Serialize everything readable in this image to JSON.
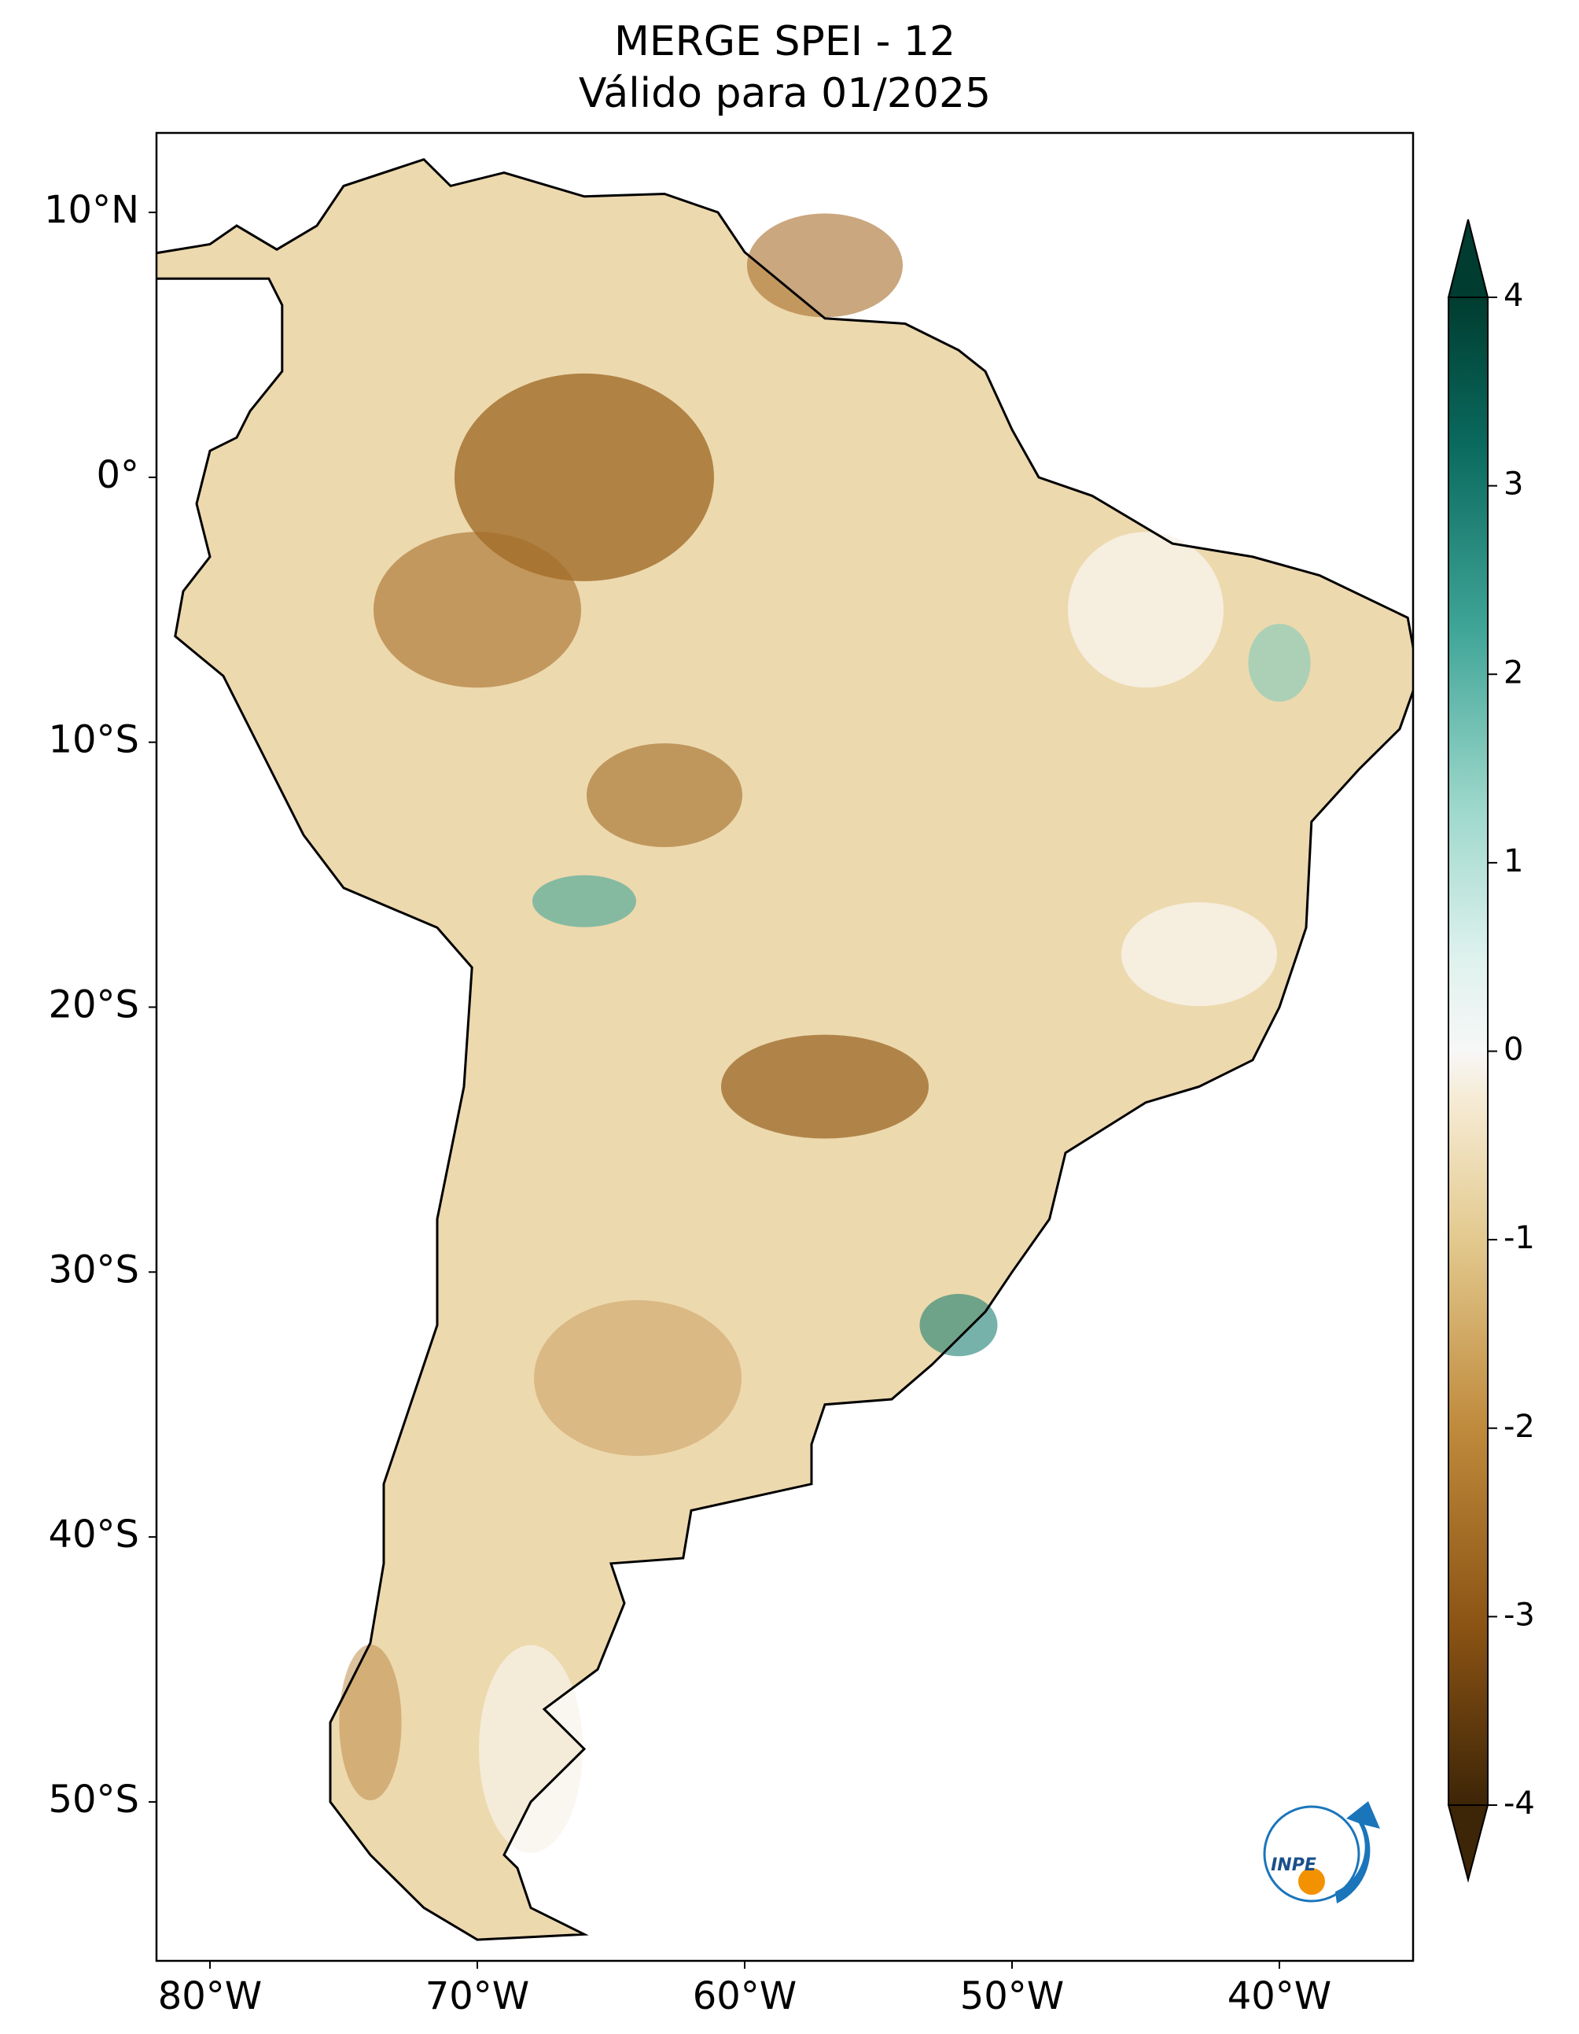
{
  "title": [
    "MERGE   SPEI - 12",
    "Válido para 01/2025"
  ],
  "map": {
    "xlim": [
      -82,
      -35
    ],
    "ylim": [
      -56,
      13
    ],
    "xticks": [
      {
        "value": -80,
        "label": "80°W"
      },
      {
        "value": -70,
        "label": "70°W"
      },
      {
        "value": -60,
        "label": "60°W"
      },
      {
        "value": -50,
        "label": "50°W"
      },
      {
        "value": -40,
        "label": "40°W"
      }
    ],
    "yticks": [
      {
        "value": 10,
        "label": "10°N"
      },
      {
        "value": 0,
        "label": "0°"
      },
      {
        "value": -10,
        "label": "10°S"
      },
      {
        "value": -20,
        "label": "20°S"
      },
      {
        "value": -30,
        "label": "30°S"
      },
      {
        "value": -40,
        "label": "40°S"
      },
      {
        "value": -50,
        "label": "50°S"
      }
    ]
  },
  "colorbar": {
    "lim": [
      -4,
      4
    ],
    "ticks": [
      -4,
      -3,
      -2,
      -1,
      0,
      1,
      2,
      3,
      4
    ]
  },
  "logo": "INPE"
}
